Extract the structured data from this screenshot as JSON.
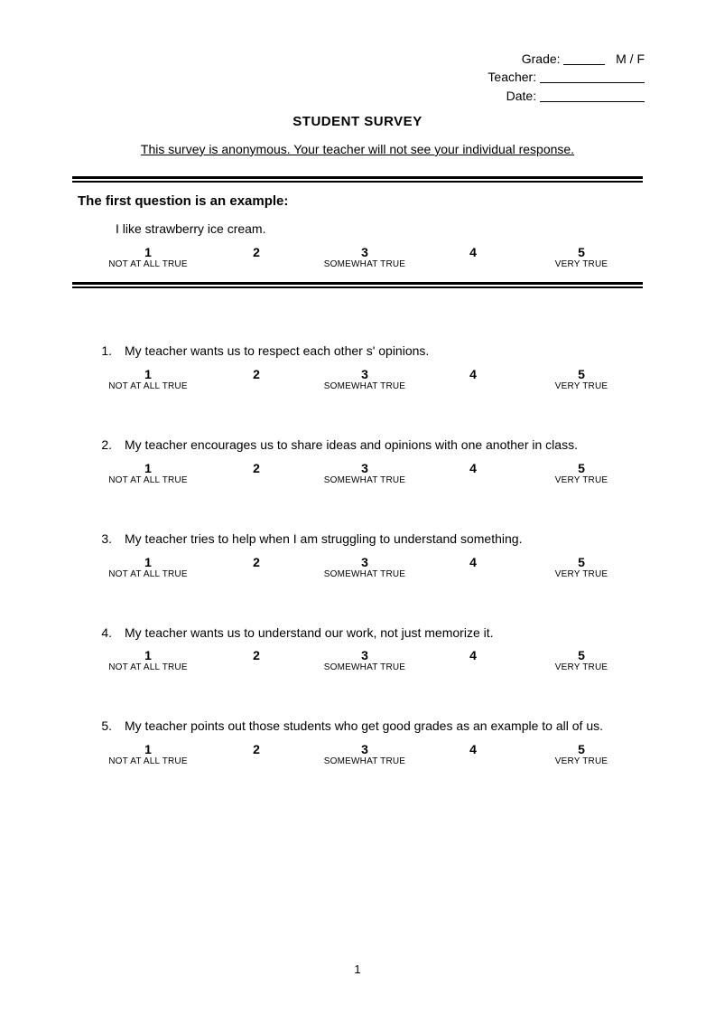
{
  "header": {
    "grade_label": "Grade:",
    "mf_label": "M / F",
    "teacher_label": "Teacher:",
    "date_label": "Date:"
  },
  "title": "STUDENT SURVEY",
  "anonymous_note": "This survey is anonymous.  Your teacher will not see your individual response.",
  "example": {
    "lead": "The first question is an example:",
    "prompt": "I like strawberry ice cream."
  },
  "scale": {
    "n1": "1",
    "n2": "2",
    "n3": "3",
    "n4": "4",
    "n5": "5",
    "l1": "NOT AT ALL TRUE",
    "l3": "SOMEWHAT TRUE",
    "l5": "VERY TRUE"
  },
  "questions": [
    {
      "num": "1.",
      "text": "My teacher wants us to respect each other   s' opinions."
    },
    {
      "num": "2.",
      "text": "My teacher encourages us to share ideas and opinions with one another in class."
    },
    {
      "num": "3.",
      "text": "My teacher tries to help when I am struggling to understand something."
    },
    {
      "num": "4.",
      "text": "My teacher wants us to understand our work, not just memorize it."
    },
    {
      "num": "5.",
      "text": "My teacher points out those students who get good grades as an example to all of us."
    }
  ],
  "page_number": "1",
  "colors": {
    "text": "#000000",
    "background": "#ffffff",
    "rule": "#000000"
  }
}
